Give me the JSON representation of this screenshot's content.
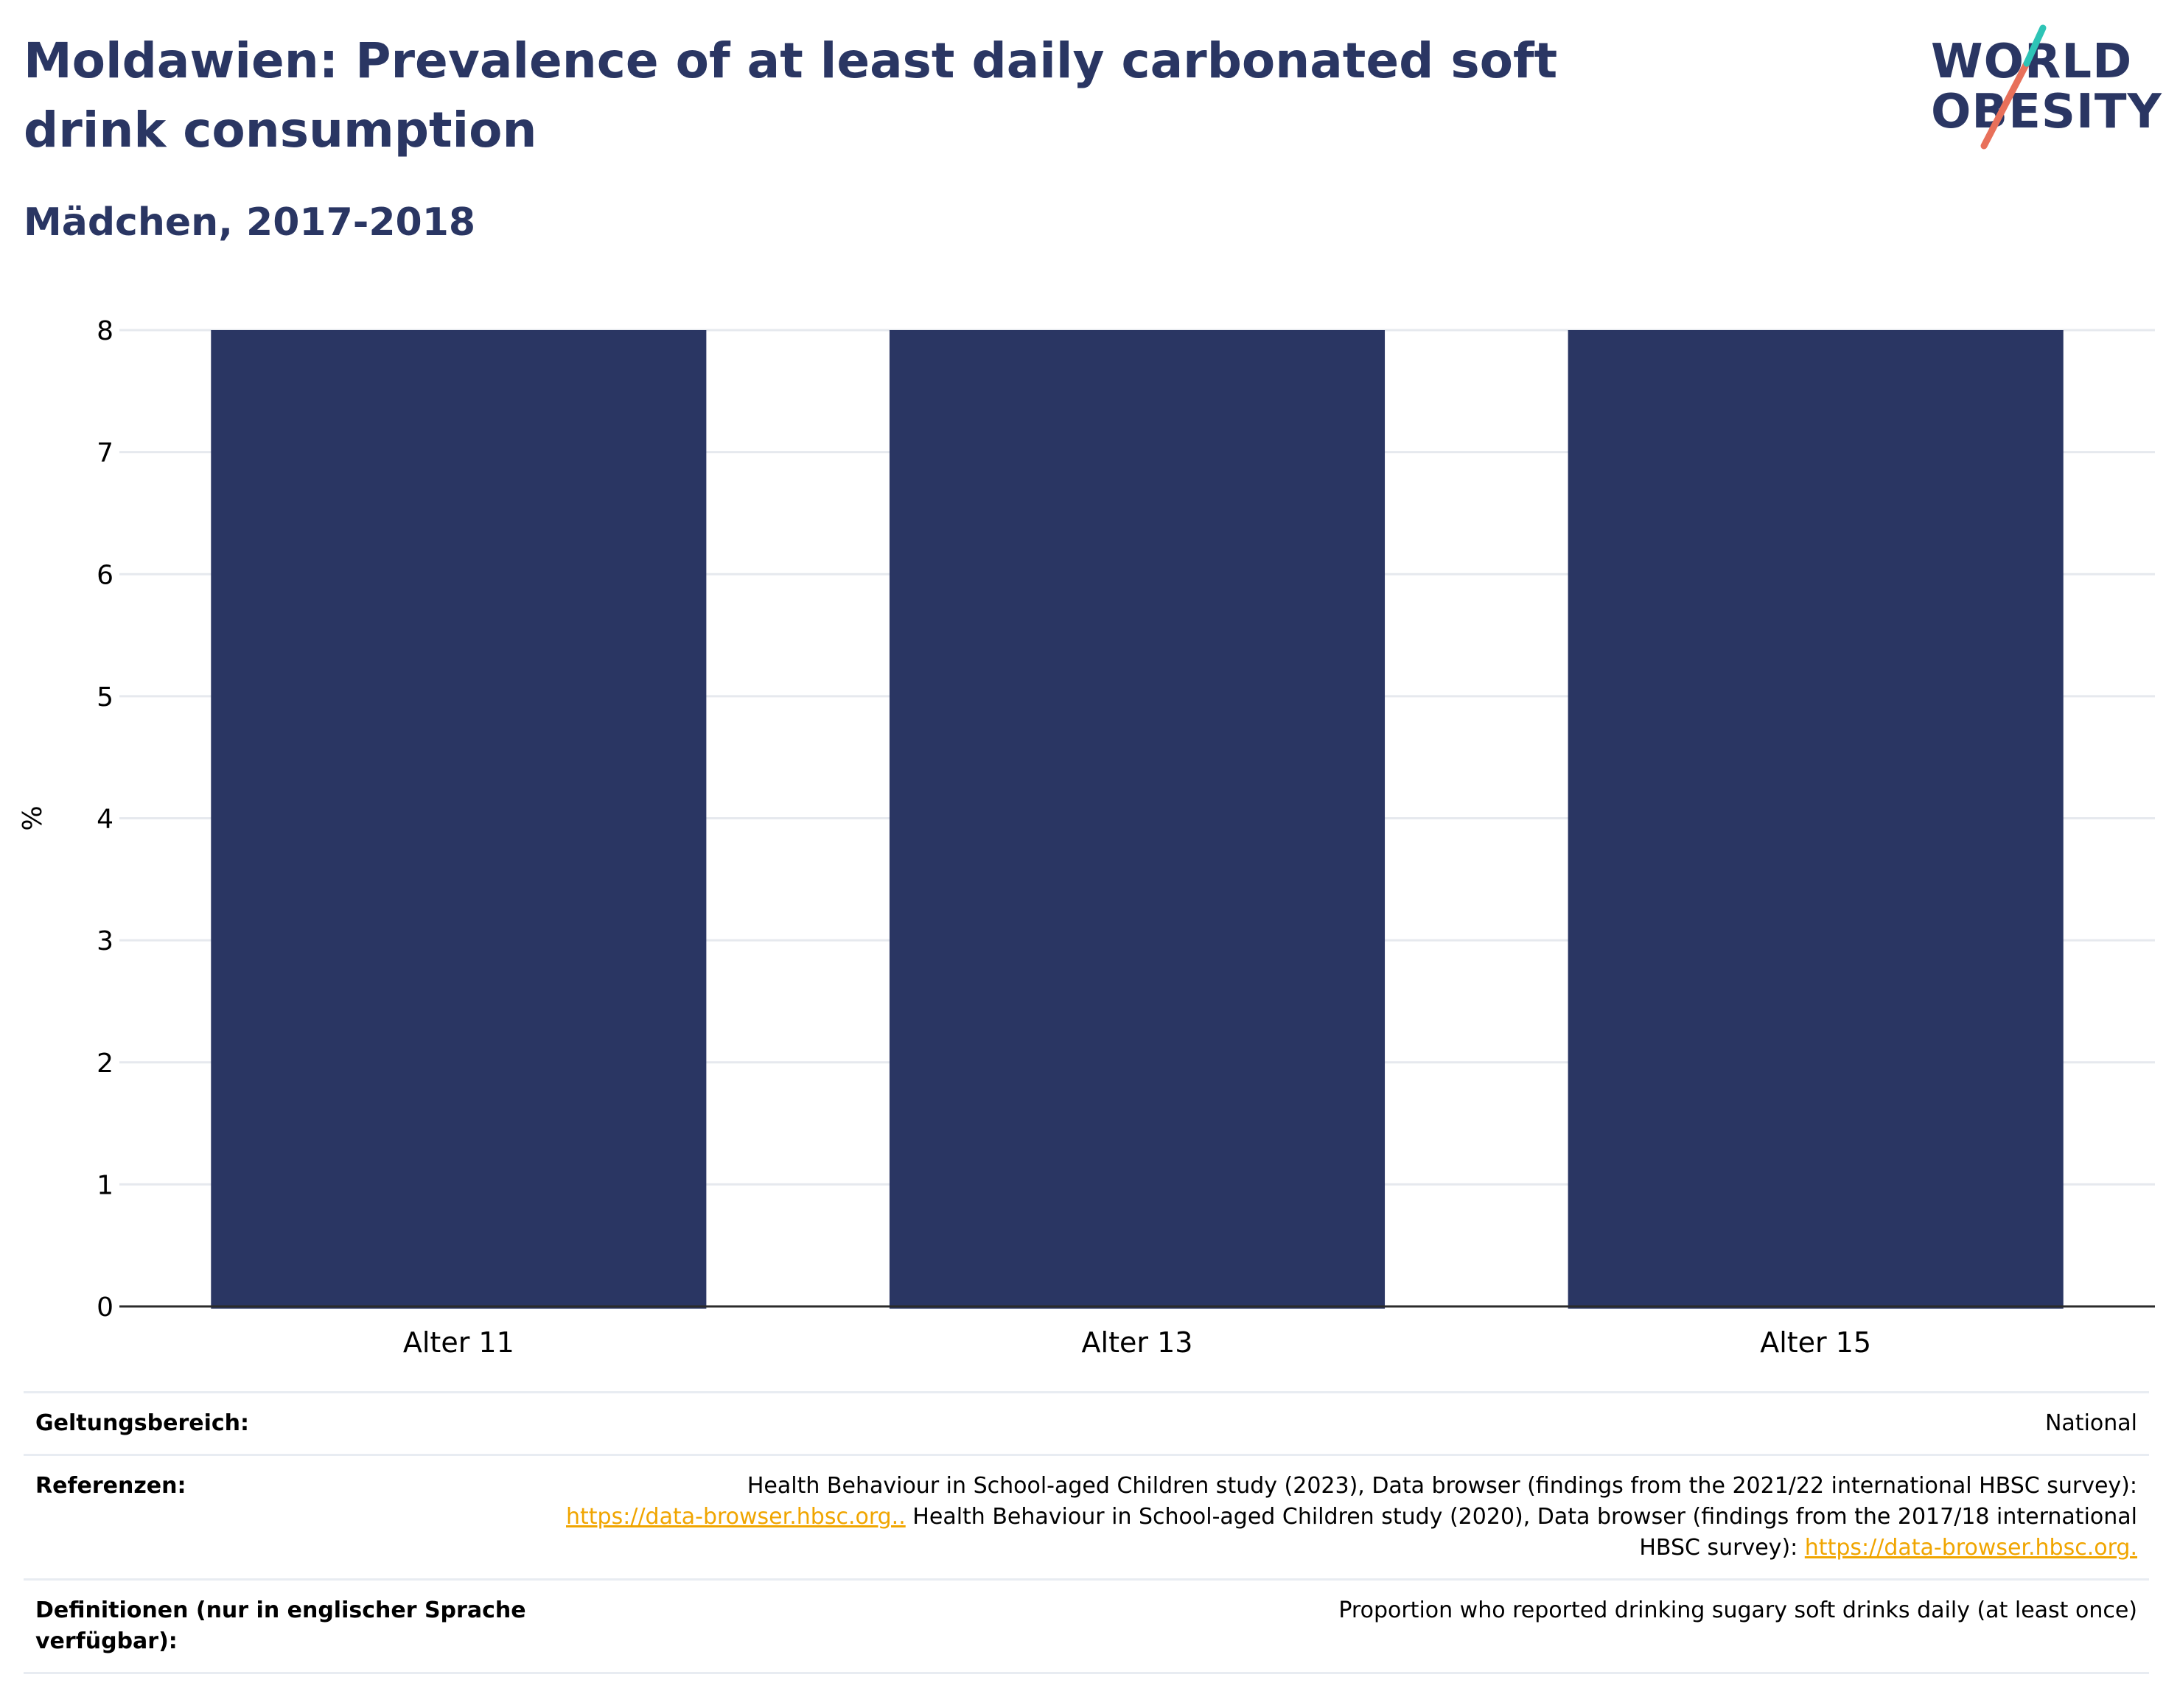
{
  "header": {
    "title": "Moldawien: Prevalence of at least daily carbonated soft drink consumption",
    "subtitle": "Mädchen, 2017-2018"
  },
  "logo": {
    "line1": "WORLD",
    "line2": "OBESITY",
    "colors": {
      "text": "#2a3663",
      "teal": "#2ec4b6",
      "coral": "#e8705a"
    }
  },
  "chart_data": {
    "type": "bar",
    "categories": [
      "Alter 11",
      "Alter 13",
      "Alter 15"
    ],
    "values": [
      8,
      8,
      8
    ],
    "ylabel": "%",
    "ylim": [
      0,
      8
    ],
    "yticks": [
      0,
      1,
      2,
      3,
      4,
      5,
      6,
      7,
      8
    ],
    "grid": true,
    "bar_color": "#2a3663"
  },
  "info": {
    "scope": {
      "label": "Geltungsbereich:",
      "value": "National"
    },
    "references": {
      "label": "Referenzen:",
      "text1": "Health Behaviour in School-aged Children study (2023), Data browser (findings from the 2021/22 international HBSC survey):",
      "link1": "https://data-browser.hbsc.org..",
      "text2": " Health Behaviour in School-aged Children study (2020), Data browser (findings from the 2017/18 international HBSC survey): ",
      "link2": "https://data-browser.hbsc.org."
    },
    "definitions": {
      "label": "Definitionen (nur in englischer Sprache verfügbar):",
      "value": "Proportion who reported drinking sugary soft drinks daily (at least once)"
    }
  }
}
